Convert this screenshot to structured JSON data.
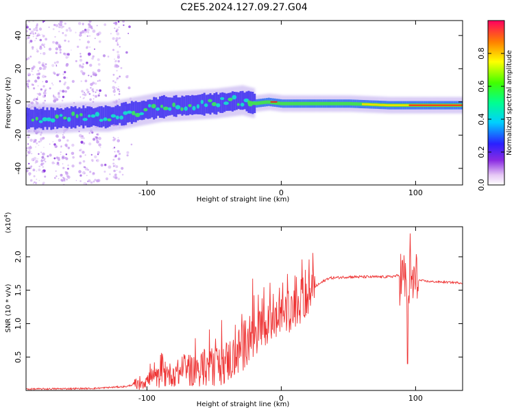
{
  "title": "C2E5.2024.127.09.27.G04",
  "colors": {
    "snr_line": "#ee3333",
    "axis": "#000000"
  },
  "chart_data": [
    {
      "type": "heatmap",
      "name": "spectrogram",
      "xlabel": "Height of straight line (km)",
      "ylabel": "Frequency (Hz)",
      "xlim": [
        -190,
        135
      ],
      "ylim": [
        -50,
        49
      ],
      "xticks": [
        -100,
        0,
        100
      ],
      "yticks": [
        -40,
        -20,
        0,
        20,
        40
      ],
      "colorbar": {
        "label": "Normalized spectral amplitude",
        "range": [
          0,
          1
        ],
        "ticks": [
          "0.0",
          "0.2",
          "0.4",
          "0.6",
          "0.8"
        ],
        "colormap": "rainbow (white-violet-blue-cyan-green-yellow-red)"
      },
      "ridge_centerline": [
        {
          "x": -190,
          "y": -10
        },
        {
          "x": -170,
          "y": -10
        },
        {
          "x": -150,
          "y": -9
        },
        {
          "x": -130,
          "y": -9
        },
        {
          "x": -110,
          "y": -6
        },
        {
          "x": -90,
          "y": -3
        },
        {
          "x": -70,
          "y": -2
        },
        {
          "x": -50,
          "y": -1
        },
        {
          "x": -30,
          "y": 1
        },
        {
          "x": -20,
          "y": -1
        },
        {
          "x": -10,
          "y": 0
        },
        {
          "x": 0,
          "y": -1
        },
        {
          "x": 20,
          "y": -1
        },
        {
          "x": 50,
          "y": -1
        },
        {
          "x": 80,
          "y": -2
        },
        {
          "x": 100,
          "y": -2
        },
        {
          "x": 135,
          "y": -2
        }
      ]
    },
    {
      "type": "line",
      "name": "snr",
      "xlabel": "Height of straight line (km)",
      "ylabel": "SNR (10 * v/v)",
      "scale_label": "(x10",
      "scale_exp": "4",
      "xlim": [
        -190,
        135
      ],
      "ylim": [
        0,
        2.45
      ],
      "xticks": [
        -100,
        0,
        100
      ],
      "yticks": [
        "0.5",
        "1.0",
        "1.5",
        "2.0"
      ],
      "envelope": [
        {
          "x": -190,
          "y": 0.02
        },
        {
          "x": -140,
          "y": 0.03
        },
        {
          "x": -115,
          "y": 0.06
        },
        {
          "x": -100,
          "y": 0.15
        },
        {
          "x": -80,
          "y": 0.25
        },
        {
          "x": -60,
          "y": 0.32
        },
        {
          "x": -45,
          "y": 0.38
        },
        {
          "x": -35,
          "y": 0.5
        },
        {
          "x": -25,
          "y": 0.75
        },
        {
          "x": -15,
          "y": 0.9
        },
        {
          "x": -5,
          "y": 1.05
        },
        {
          "x": 5,
          "y": 1.15
        },
        {
          "x": 15,
          "y": 1.3
        },
        {
          "x": 25,
          "y": 1.55
        },
        {
          "x": 35,
          "y": 1.68
        },
        {
          "x": 50,
          "y": 1.7
        },
        {
          "x": 80,
          "y": 1.7
        },
        {
          "x": 88,
          "y": 1.72
        },
        {
          "x": 95,
          "y": 1.6
        },
        {
          "x": 102,
          "y": 1.65
        },
        {
          "x": 110,
          "y": 1.63
        },
        {
          "x": 135,
          "y": 1.61
        }
      ],
      "max": {
        "x": 96,
        "y": 2.35
      },
      "min": {
        "x": 94,
        "y": 0.4
      }
    }
  ]
}
